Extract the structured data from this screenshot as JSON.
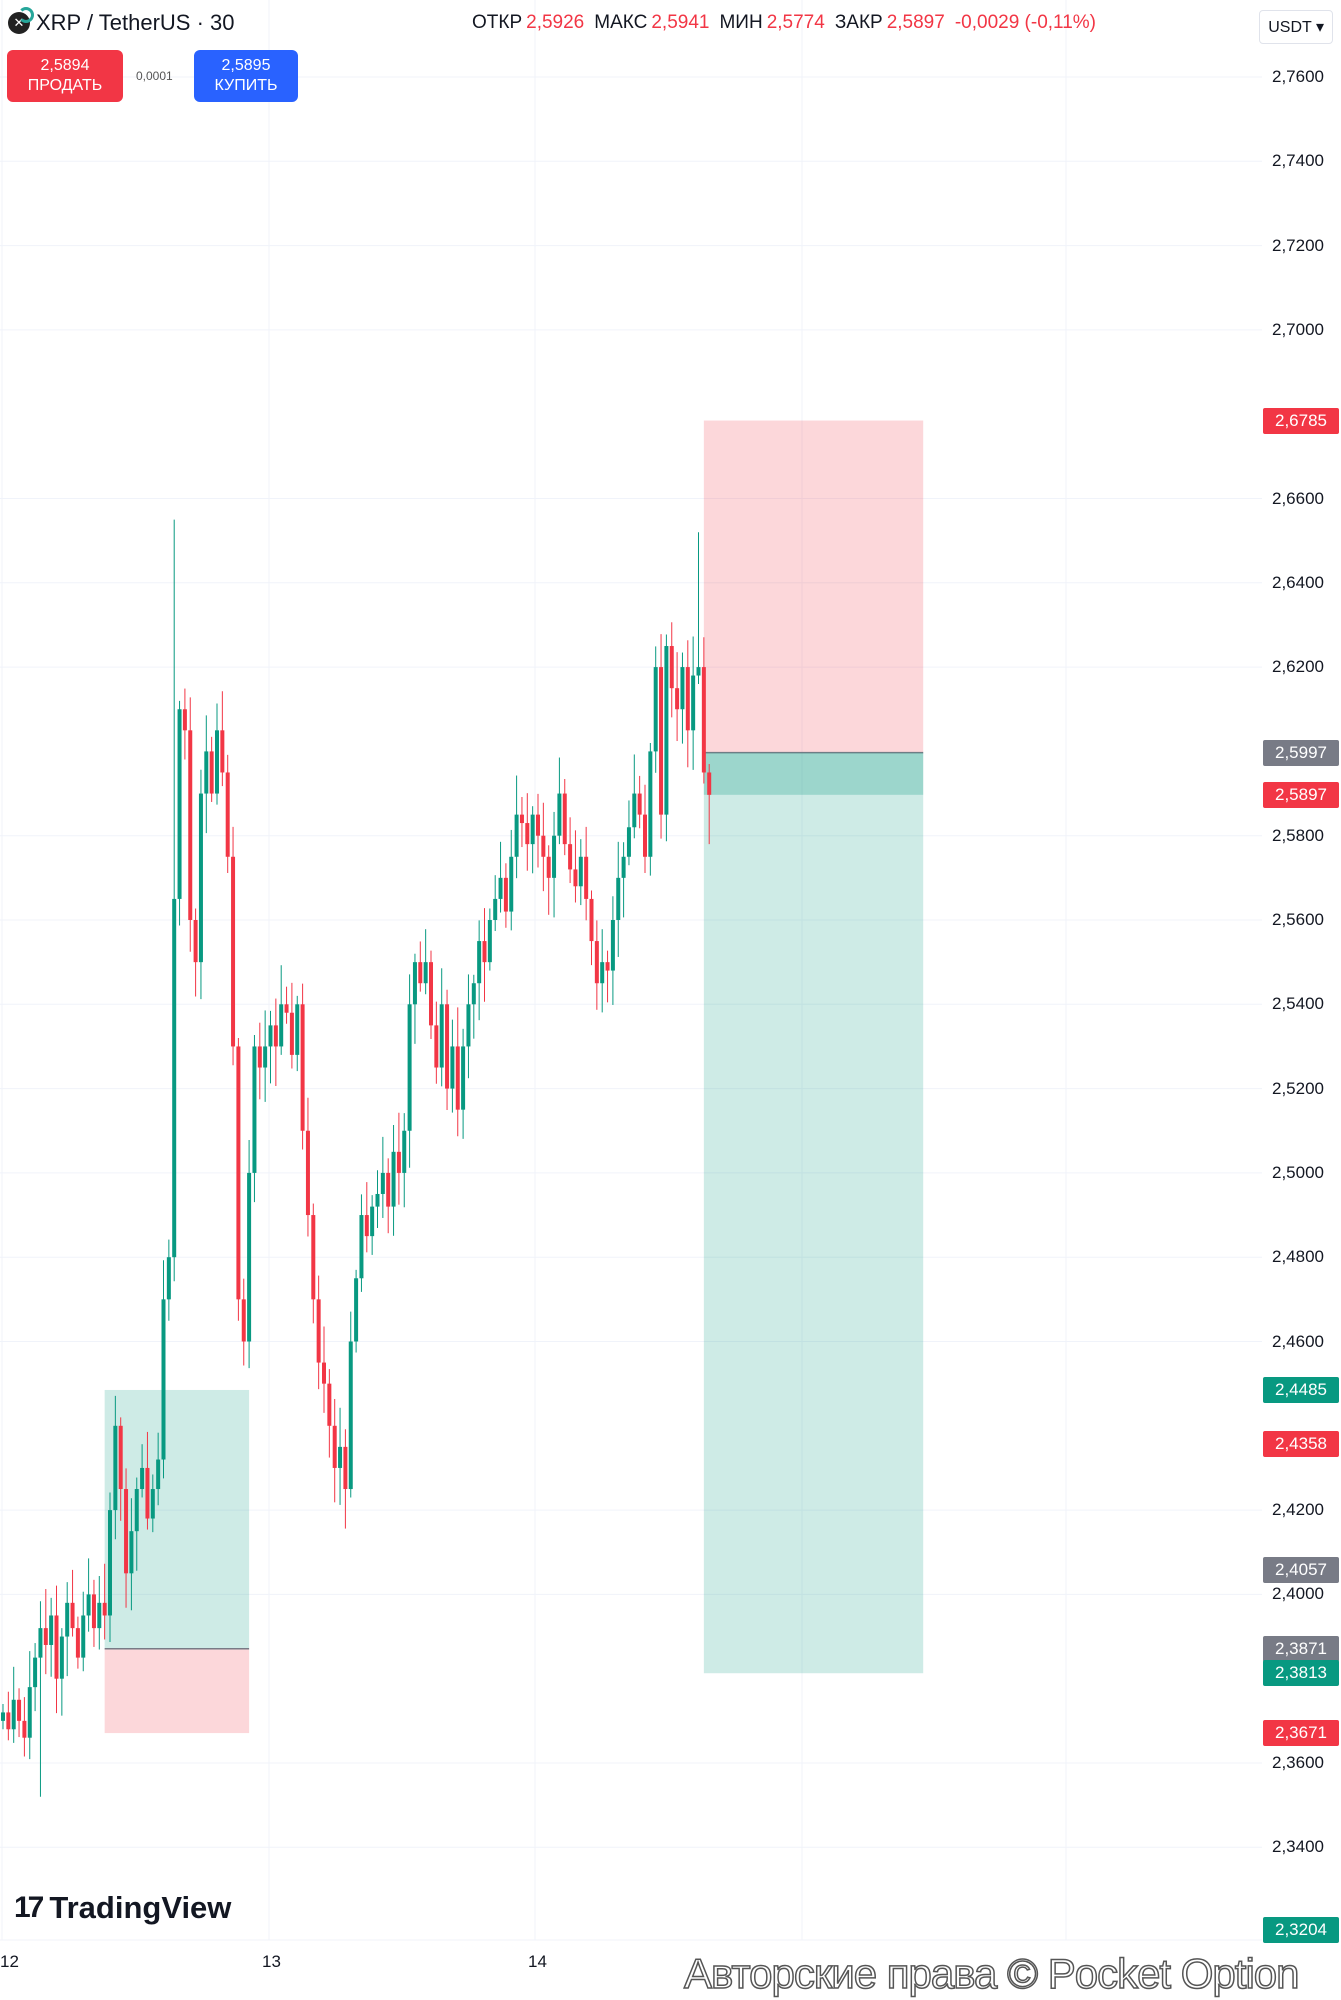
{
  "header": {
    "symbol": "XRP / TetherUS · 30",
    "open_label": "ОТКР",
    "open": "2,5926",
    "high_label": "МАКС",
    "high": "2,5941",
    "low_label": "МИН",
    "low": "2,5774",
    "close_label": "ЗАКР",
    "close": "2,5897",
    "change": "-0,0029 (-0,11%)",
    "currency": "USDT"
  },
  "trade": {
    "sell_price": "2,5894",
    "sell_label": "ПРОДАТЬ",
    "spread": "0,0001",
    "buy_price": "2,5895",
    "buy_label": "КУПИТЬ"
  },
  "branding": {
    "logo": "TradingView",
    "watermark": "Авторские права © Pocket Option"
  },
  "colors": {
    "up": "#089981",
    "down": "#f23645",
    "profit": "#26a69a",
    "loss": "#f23645",
    "neutral": "#787b86"
  },
  "chart_data": {
    "type": "candlestick",
    "title": "XRP / TetherUS · 30",
    "y_ticks": [
      "2,7600",
      "2,7400",
      "2,7200",
      "2,7000",
      "2,6600",
      "2,6400",
      "2,6200",
      "2,5800",
      "2,5600",
      "2,5400",
      "2,5200",
      "2,5000",
      "2,4800",
      "2,4600",
      "2,4200",
      "2,4000",
      "2,3600",
      "2,3400"
    ],
    "y_tick_values": [
      2.76,
      2.74,
      2.72,
      2.7,
      2.66,
      2.64,
      2.62,
      2.58,
      2.56,
      2.54,
      2.52,
      2.5,
      2.48,
      2.46,
      2.42,
      2.4,
      2.36,
      2.34
    ],
    "x_ticks": [
      "12",
      "13",
      "14"
    ],
    "ylim": [
      2.3,
      2.78
    ],
    "start_open": 2.37,
    "closes": [
      2.372,
      2.368,
      2.375,
      2.37,
      2.366,
      2.378,
      2.385,
      2.392,
      2.388,
      2.395,
      2.38,
      2.39,
      2.398,
      2.392,
      2.385,
      2.395,
      2.4,
      2.392,
      2.398,
      2.395,
      2.42,
      2.44,
      2.425,
      2.405,
      2.415,
      2.425,
      2.43,
      2.418,
      2.425,
      2.432,
      2.47,
      2.48,
      2.565,
      2.61,
      2.605,
      2.56,
      2.55,
      2.59,
      2.6,
      2.59,
      2.605,
      2.595,
      2.575,
      2.53,
      2.47,
      2.46,
      2.5,
      2.53,
      2.525,
      2.53,
      2.535,
      2.53,
      2.54,
      2.538,
      2.528,
      2.54,
      2.51,
      2.49,
      2.47,
      2.455,
      2.45,
      2.44,
      2.43,
      2.435,
      2.425,
      2.46,
      2.475,
      2.49,
      2.485,
      2.492,
      2.495,
      2.5,
      2.492,
      2.505,
      2.5,
      2.51,
      2.54,
      2.55,
      2.545,
      2.55,
      2.535,
      2.525,
      2.54,
      2.52,
      2.53,
      2.515,
      2.53,
      2.54,
      2.545,
      2.555,
      2.55,
      2.56,
      2.565,
      2.57,
      2.562,
      2.575,
      2.585,
      2.583,
      2.578,
      2.585,
      2.58,
      2.575,
      2.57,
      2.58,
      2.59,
      2.578,
      2.572,
      2.568,
      2.575,
      2.565,
      2.555,
      2.545,
      2.55,
      2.548,
      2.56,
      2.57,
      2.575,
      2.582,
      2.59,
      2.585,
      2.575,
      2.6,
      2.62,
      2.585,
      2.625,
      2.615,
      2.61,
      2.62,
      2.605,
      2.618,
      2.62,
      2.595,
      2.5897
    ],
    "positions": [
      {
        "type": "long",
        "entry": 2.3871,
        "target": 2.4485,
        "stop": 2.3671,
        "start_candle": 19,
        "end_candle": 46
      },
      {
        "type": "short",
        "entry": 2.5997,
        "target": 2.3813,
        "stop": 2.6785,
        "start_candle": 131,
        "end_candle": 172
      }
    ],
    "price_labels": [
      {
        "text": "2,6785",
        "value": 2.6785,
        "color": "#f23645"
      },
      {
        "text": "2,5997",
        "value": 2.5997,
        "color": "#787b86"
      },
      {
        "text": "2,5897",
        "value": 2.5897,
        "color": "#f23645"
      },
      {
        "text": "2,4485",
        "value": 2.4485,
        "color": "#089981"
      },
      {
        "text": "2,4358",
        "value": 2.4358,
        "color": "#f23645"
      },
      {
        "text": "2,4057",
        "value": 2.4057,
        "color": "#787b86"
      },
      {
        "text": "2,3871",
        "value": 2.3871,
        "color": "#787b86"
      },
      {
        "text": "2,3813",
        "value": 2.3813,
        "color": "#089981"
      },
      {
        "text": "2,3671",
        "value": 2.3671,
        "color": "#f23645"
      },
      {
        "text": "2,3204",
        "value": 2.3204,
        "color": "#089981"
      }
    ]
  }
}
